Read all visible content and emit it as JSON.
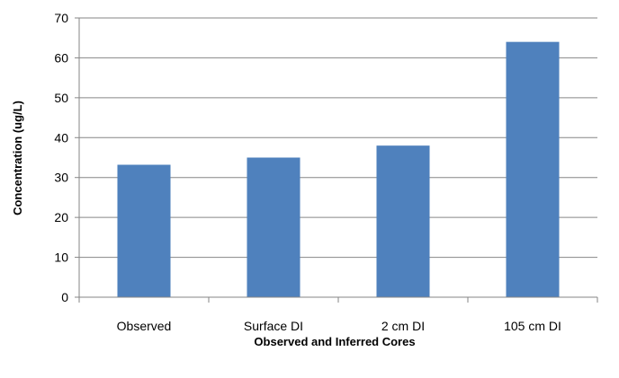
{
  "chart_data": {
    "type": "bar",
    "categories": [
      "Observed",
      "Surface DI",
      "2 cm DI",
      "105 cm DI"
    ],
    "values": [
      33.2,
      35,
      38,
      64
    ],
    "title": "",
    "xlabel": "Observed and Inferred Cores",
    "ylabel": "Concentration (ug/L)",
    "ylim": [
      0,
      70
    ],
    "yticks": [
      0,
      10,
      20,
      30,
      40,
      50,
      60,
      70
    ],
    "ytick_labels": [
      "0",
      "10",
      "20",
      "30",
      "40",
      "50",
      "60",
      "70"
    ],
    "grid": true,
    "legend": "none",
    "bar_color": "#4F81BD",
    "grid_color": "#868686"
  }
}
